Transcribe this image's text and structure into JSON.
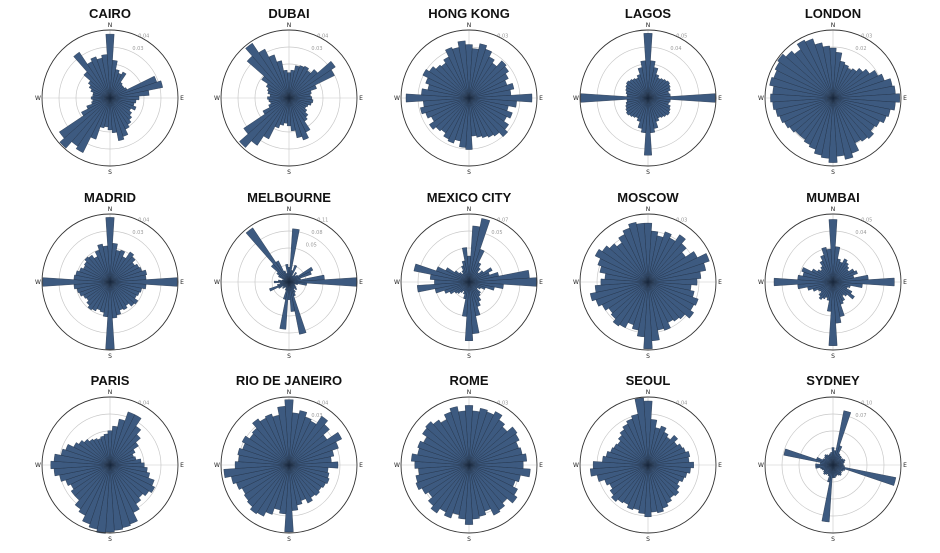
{
  "style": {
    "bar_color": "#3d5a80",
    "edge_color": "#1b2a3d",
    "grid_color": "#c8c8c8",
    "outer_ring_color": "#333333"
  },
  "chart_data": [
    {
      "type": "polar-bar",
      "title": "CAIRO",
      "directions": [
        "N",
        "E",
        "S",
        "W"
      ],
      "ticks": [
        "0.04",
        "0.03"
      ],
      "rmax": 0.0468,
      "values": [
        0.044,
        0.026,
        0.02,
        0.018,
        0.02,
        0.013,
        0.012,
        0.012,
        0.013,
        0.034,
        0.037,
        0.027,
        0.02,
        0.018,
        0.017,
        0.019,
        0.016,
        0.018,
        0.02,
        0.022,
        0.024,
        0.028,
        0.03,
        0.024,
        0.022,
        0.02,
        0.021,
        0.03,
        0.042,
        0.04,
        0.046,
        0.042,
        0.022,
        0.017,
        0.013,
        0.012,
        0.013,
        0.012,
        0.012,
        0.014,
        0.016,
        0.018,
        0.024,
        0.038,
        0.028,
        0.03,
        0.028,
        0.03
      ]
    },
    {
      "type": "polar-bar",
      "title": "DUBAI",
      "directions": [
        "N",
        "E",
        "S",
        "W"
      ],
      "ticks": [
        "0.04",
        "0.03"
      ],
      "rmax": 0.0536,
      "values": [
        0.02,
        0.022,
        0.026,
        0.027,
        0.028,
        0.026,
        0.03,
        0.044,
        0.04,
        0.023,
        0.018,
        0.017,
        0.018,
        0.019,
        0.018,
        0.016,
        0.015,
        0.017,
        0.02,
        0.022,
        0.03,
        0.035,
        0.032,
        0.026,
        0.022,
        0.02,
        0.022,
        0.025,
        0.036,
        0.045,
        0.052,
        0.043,
        0.023,
        0.017,
        0.015,
        0.016,
        0.017,
        0.015,
        0.017,
        0.018,
        0.02,
        0.026,
        0.044,
        0.052,
        0.043,
        0.036,
        0.03,
        0.022
      ]
    },
    {
      "type": "polar-bar",
      "title": "HONG KONG",
      "directions": [
        "N",
        "E",
        "S",
        "W"
      ],
      "ticks": [
        "0.03"
      ],
      "rmax": 0.0356,
      "values": [
        0.028,
        0.026,
        0.029,
        0.027,
        0.024,
        0.022,
        0.026,
        0.025,
        0.023,
        0.021,
        0.024,
        0.022,
        0.033,
        0.025,
        0.021,
        0.024,
        0.022,
        0.025,
        0.027,
        0.024,
        0.023,
        0.022,
        0.021,
        0.02,
        0.027,
        0.026,
        0.023,
        0.025,
        0.024,
        0.022,
        0.023,
        0.025,
        0.022,
        0.024,
        0.026,
        0.024,
        0.033,
        0.025,
        0.022,
        0.024,
        0.027,
        0.025,
        0.023,
        0.022,
        0.024,
        0.028,
        0.027,
        0.03
      ]
    },
    {
      "type": "polar-bar",
      "title": "LAGOS",
      "directions": [
        "N",
        "E",
        "S",
        "W"
      ],
      "ticks": [
        "0.05",
        "0.04"
      ],
      "rmax": 0.0546,
      "values": [
        0.052,
        0.03,
        0.025,
        0.02,
        0.018,
        0.019,
        0.02,
        0.021,
        0.02,
        0.019,
        0.017,
        0.018,
        0.054,
        0.018,
        0.017,
        0.019,
        0.02,
        0.021,
        0.02,
        0.019,
        0.018,
        0.02,
        0.025,
        0.028,
        0.046,
        0.028,
        0.025,
        0.02,
        0.018,
        0.019,
        0.02,
        0.021,
        0.02,
        0.019,
        0.018,
        0.017,
        0.054,
        0.017,
        0.018,
        0.019,
        0.02,
        0.021,
        0.02,
        0.019,
        0.018,
        0.02,
        0.025,
        0.03
      ]
    },
    {
      "type": "polar-bar",
      "title": "LONDON",
      "directions": [
        "N",
        "E",
        "S",
        "W"
      ],
      "ticks": [
        "0.03",
        "0.02"
      ],
      "rmax": 0.0326,
      "values": [
        0.024,
        0.022,
        0.018,
        0.017,
        0.016,
        0.017,
        0.019,
        0.021,
        0.024,
        0.026,
        0.029,
        0.03,
        0.032,
        0.03,
        0.028,
        0.027,
        0.025,
        0.024,
        0.026,
        0.025,
        0.024,
        0.028,
        0.03,
        0.028,
        0.031,
        0.029,
        0.028,
        0.026,
        0.025,
        0.024,
        0.024,
        0.025,
        0.026,
        0.027,
        0.028,
        0.029,
        0.03,
        0.029,
        0.031,
        0.03,
        0.031,
        0.032,
        0.03,
        0.028,
        0.031,
        0.03,
        0.027,
        0.025
      ]
    },
    {
      "type": "polar-bar",
      "title": "MADRID",
      "directions": [
        "N",
        "E",
        "S",
        "W"
      ],
      "ticks": [
        "0.04",
        "0.03"
      ],
      "rmax": 0.0526,
      "values": [
        0.05,
        0.03,
        0.025,
        0.026,
        0.022,
        0.028,
        0.026,
        0.023,
        0.025,
        0.026,
        0.029,
        0.028,
        0.052,
        0.028,
        0.025,
        0.024,
        0.023,
        0.026,
        0.025,
        0.022,
        0.024,
        0.023,
        0.026,
        0.028,
        0.052,
        0.027,
        0.024,
        0.023,
        0.025,
        0.026,
        0.024,
        0.022,
        0.023,
        0.025,
        0.026,
        0.028,
        0.052,
        0.028,
        0.027,
        0.025,
        0.023,
        0.024,
        0.026,
        0.025,
        0.022,
        0.026,
        0.03,
        0.028
      ]
    },
    {
      "type": "polar-bar",
      "title": "MELBOURNE",
      "directions": [
        "N",
        "E",
        "S",
        "W"
      ],
      "ticks": [
        "0.11",
        "0.08",
        "0.05"
      ],
      "rmax": 0.1146,
      "values": [
        0.025,
        0.09,
        0.02,
        0.03,
        0.012,
        0.02,
        0.015,
        0.018,
        0.045,
        0.04,
        0.02,
        0.06,
        0.114,
        0.03,
        0.015,
        0.01,
        0.012,
        0.015,
        0.018,
        0.014,
        0.02,
        0.025,
        0.09,
        0.05,
        0.03,
        0.08,
        0.03,
        0.015,
        0.01,
        0.012,
        0.015,
        0.012,
        0.02,
        0.035,
        0.02,
        0.015,
        0.025,
        0.018,
        0.012,
        0.01,
        0.02,
        0.025,
        0.04,
        0.11,
        0.04,
        0.02,
        0.015,
        0.03
      ]
    },
    {
      "type": "polar-bar",
      "title": "MEXICO CITY",
      "directions": [
        "N",
        "E",
        "S",
        "W"
      ],
      "ticks": [
        "0.07",
        "0.05"
      ],
      "rmax": 0.0786,
      "values": [
        0.03,
        0.065,
        0.075,
        0.04,
        0.025,
        0.02,
        0.015,
        0.02,
        0.03,
        0.025,
        0.035,
        0.07,
        0.078,
        0.04,
        0.03,
        0.02,
        0.015,
        0.012,
        0.018,
        0.02,
        0.025,
        0.03,
        0.04,
        0.06,
        0.068,
        0.04,
        0.02,
        0.015,
        0.012,
        0.015,
        0.018,
        0.02,
        0.025,
        0.03,
        0.04,
        0.06,
        0.04,
        0.045,
        0.065,
        0.04,
        0.03,
        0.02,
        0.015,
        0.012,
        0.015,
        0.02,
        0.025,
        0.04
      ]
    },
    {
      "type": "polar-bar",
      "title": "MOSCOW",
      "directions": [
        "N",
        "E",
        "S",
        "W"
      ],
      "ticks": [
        "0.03"
      ],
      "rmax": 0.0346,
      "values": [
        0.03,
        0.026,
        0.024,
        0.027,
        0.025,
        0.029,
        0.026,
        0.023,
        0.028,
        0.033,
        0.03,
        0.027,
        0.025,
        0.022,
        0.024,
        0.027,
        0.026,
        0.028,
        0.025,
        0.024,
        0.023,
        0.026,
        0.025,
        0.03,
        0.034,
        0.028,
        0.025,
        0.023,
        0.026,
        0.027,
        0.025,
        0.024,
        0.026,
        0.028,
        0.03,
        0.027,
        0.024,
        0.022,
        0.025,
        0.027,
        0.03,
        0.028,
        0.026,
        0.024,
        0.027,
        0.029,
        0.031,
        0.03
      ]
    },
    {
      "type": "polar-bar",
      "title": "MUMBAI",
      "directions": [
        "N",
        "E",
        "S",
        "W"
      ],
      "ticks": [
        "0.05",
        "0.04"
      ],
      "rmax": 0.0576,
      "values": [
        0.053,
        0.03,
        0.02,
        0.018,
        0.022,
        0.02,
        0.018,
        0.016,
        0.02,
        0.022,
        0.018,
        0.03,
        0.052,
        0.025,
        0.015,
        0.013,
        0.018,
        0.022,
        0.016,
        0.014,
        0.018,
        0.02,
        0.03,
        0.035,
        0.054,
        0.025,
        0.016,
        0.014,
        0.016,
        0.018,
        0.016,
        0.013,
        0.014,
        0.018,
        0.022,
        0.03,
        0.05,
        0.03,
        0.026,
        0.028,
        0.02,
        0.016,
        0.014,
        0.016,
        0.02,
        0.024,
        0.03,
        0.028
      ]
    },
    {
      "type": "polar-bar",
      "title": "PARIS",
      "directions": [
        "N",
        "E",
        "S",
        "W"
      ],
      "ticks": [
        "0.04"
      ],
      "rmax": 0.0436,
      "values": [
        0.022,
        0.025,
        0.03,
        0.036,
        0.036,
        0.03,
        0.026,
        0.022,
        0.018,
        0.016,
        0.017,
        0.02,
        0.022,
        0.024,
        0.026,
        0.03,
        0.032,
        0.03,
        0.028,
        0.03,
        0.034,
        0.04,
        0.041,
        0.042,
        0.043,
        0.044,
        0.042,
        0.04,
        0.036,
        0.034,
        0.03,
        0.03,
        0.028,
        0.03,
        0.033,
        0.036,
        0.038,
        0.036,
        0.032,
        0.03,
        0.026,
        0.024,
        0.022,
        0.02,
        0.019,
        0.018,
        0.019,
        0.02
      ]
    },
    {
      "type": "polar-bar",
      "title": "RIO DE JANEIRO",
      "directions": [
        "N",
        "E",
        "S",
        "W"
      ],
      "ticks": [
        "0.04",
        "0.03"
      ],
      "rmax": 0.0416,
      "values": [
        0.04,
        0.032,
        0.034,
        0.031,
        0.03,
        0.036,
        0.033,
        0.028,
        0.036,
        0.032,
        0.028,
        0.026,
        0.03,
        0.024,
        0.025,
        0.026,
        0.025,
        0.024,
        0.025,
        0.024,
        0.026,
        0.023,
        0.025,
        0.028,
        0.041,
        0.03,
        0.028,
        0.032,
        0.035,
        0.036,
        0.034,
        0.033,
        0.032,
        0.034,
        0.036,
        0.04,
        0.033,
        0.031,
        0.032,
        0.03,
        0.032,
        0.029,
        0.03,
        0.034,
        0.032,
        0.033,
        0.031,
        0.036
      ]
    },
    {
      "type": "polar-bar",
      "title": "ROME",
      "directions": [
        "N",
        "E",
        "S",
        "W"
      ],
      "ticks": [
        "0.03"
      ],
      "rmax": 0.0376,
      "values": [
        0.033,
        0.03,
        0.032,
        0.031,
        0.033,
        0.03,
        0.028,
        0.032,
        0.031,
        0.029,
        0.03,
        0.032,
        0.03,
        0.034,
        0.029,
        0.027,
        0.03,
        0.032,
        0.028,
        0.03,
        0.031,
        0.027,
        0.029,
        0.03,
        0.033,
        0.03,
        0.028,
        0.031,
        0.029,
        0.032,
        0.03,
        0.027,
        0.029,
        0.031,
        0.03,
        0.028,
        0.03,
        0.032,
        0.029,
        0.03,
        0.028,
        0.031,
        0.032,
        0.03,
        0.028,
        0.031,
        0.033,
        0.03
      ]
    },
    {
      "type": "polar-bar",
      "title": "SEOUL",
      "directions": [
        "N",
        "E",
        "S",
        "W"
      ],
      "ticks": [
        "0.04"
      ],
      "rmax": 0.0446,
      "values": [
        0.042,
        0.03,
        0.025,
        0.027,
        0.024,
        0.022,
        0.026,
        0.023,
        0.025,
        0.026,
        0.028,
        0.027,
        0.03,
        0.028,
        0.026,
        0.025,
        0.023,
        0.025,
        0.027,
        0.026,
        0.028,
        0.03,
        0.032,
        0.031,
        0.034,
        0.032,
        0.03,
        0.031,
        0.029,
        0.03,
        0.032,
        0.03,
        0.028,
        0.03,
        0.034,
        0.038,
        0.036,
        0.03,
        0.028,
        0.026,
        0.025,
        0.024,
        0.026,
        0.028,
        0.03,
        0.032,
        0.034,
        0.044
      ]
    },
    {
      "type": "polar-bar",
      "title": "SYDNEY",
      "directions": [
        "N",
        "E",
        "S",
        "W"
      ],
      "ticks": [
        "0.10",
        "0.07"
      ],
      "rmax": 0.1166,
      "values": [
        0.03,
        0.025,
        0.095,
        0.035,
        0.022,
        0.02,
        0.02,
        0.018,
        0.02,
        0.022,
        0.02,
        0.018,
        0.018,
        0.02,
        0.11,
        0.022,
        0.02,
        0.018,
        0.02,
        0.022,
        0.02,
        0.018,
        0.02,
        0.022,
        0.022,
        0.098,
        0.03,
        0.02,
        0.018,
        0.02,
        0.022,
        0.02,
        0.018,
        0.02,
        0.022,
        0.03,
        0.03,
        0.022,
        0.086,
        0.03,
        0.02,
        0.018,
        0.02,
        0.022,
        0.02,
        0.018,
        0.02,
        0.022
      ]
    }
  ]
}
